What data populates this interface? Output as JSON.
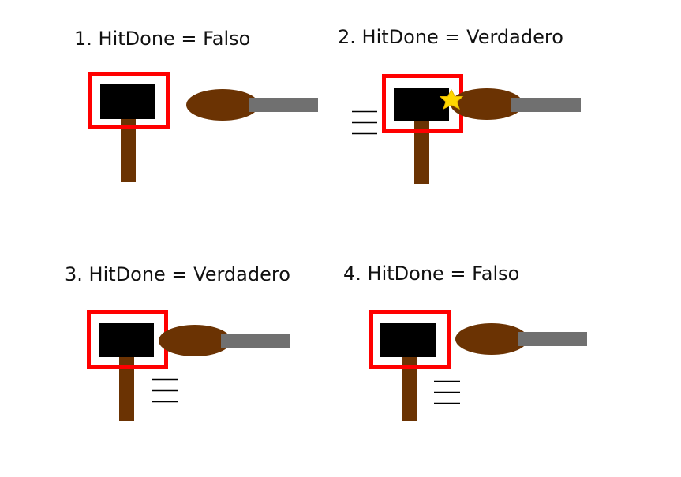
{
  "colors": {
    "frame": "#ff0000",
    "hammer_head": "#000000",
    "handle": "#6b3303",
    "hand": "#6b3303",
    "arm": "#707070",
    "impact_star": "#ffd700",
    "motion_lines": "#000000"
  },
  "panels": [
    {
      "caption": "1. HitDone = Falso",
      "impact_star": false,
      "motion_lines": false
    },
    {
      "caption": "2. HitDone = Verdadero",
      "impact_star": true,
      "motion_lines": true
    },
    {
      "caption": "3. HitDone = Verdadero",
      "impact_star": false,
      "motion_lines": true
    },
    {
      "caption": "4. HitDone = Falso",
      "impact_star": false,
      "motion_lines": true
    }
  ]
}
